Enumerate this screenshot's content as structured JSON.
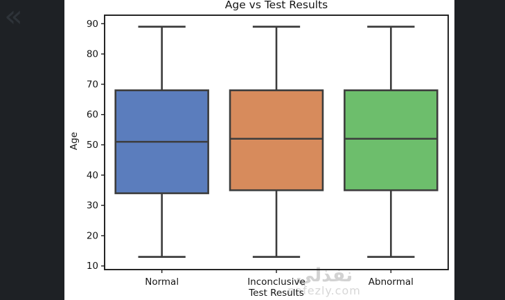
{
  "window": {
    "background_color": "#1e2125",
    "collapse_icon": "«"
  },
  "figure": {
    "background_color": "#ffffff"
  },
  "chart_data": {
    "type": "boxplot",
    "title": "Age vs Test Results",
    "xlabel": "Test Results",
    "ylabel": "Age",
    "categories": [
      "Normal",
      "Inconclusive",
      "Abnormal"
    ],
    "series": [
      {
        "name": "Normal",
        "whisker_low": 13,
        "q1": 34,
        "median": 51,
        "q3": 68,
        "whisker_high": 89,
        "color": "#5B7DBD"
      },
      {
        "name": "Inconclusive",
        "whisker_low": 13,
        "q1": 35,
        "median": 52,
        "q3": 68,
        "whisker_high": 89,
        "color": "#D78B5C"
      },
      {
        "name": "Abnormal",
        "whisker_low": 13,
        "q1": 35,
        "median": 52,
        "q3": 68,
        "whisker_high": 89,
        "color": "#6DBE6C"
      }
    ],
    "yticks": [
      10,
      20,
      30,
      40,
      50,
      60,
      70,
      80,
      90
    ],
    "ylim": [
      8.8,
      92.8
    ],
    "grid": false,
    "legend": null,
    "edge_color": "#3c3c3c",
    "spine_color": "#1a1a1a",
    "tick_label_color": "#141414"
  },
  "watermark": {
    "arabic": "نفذلي",
    "latin": "nafezly.com",
    "color": "#d2d2d2"
  }
}
